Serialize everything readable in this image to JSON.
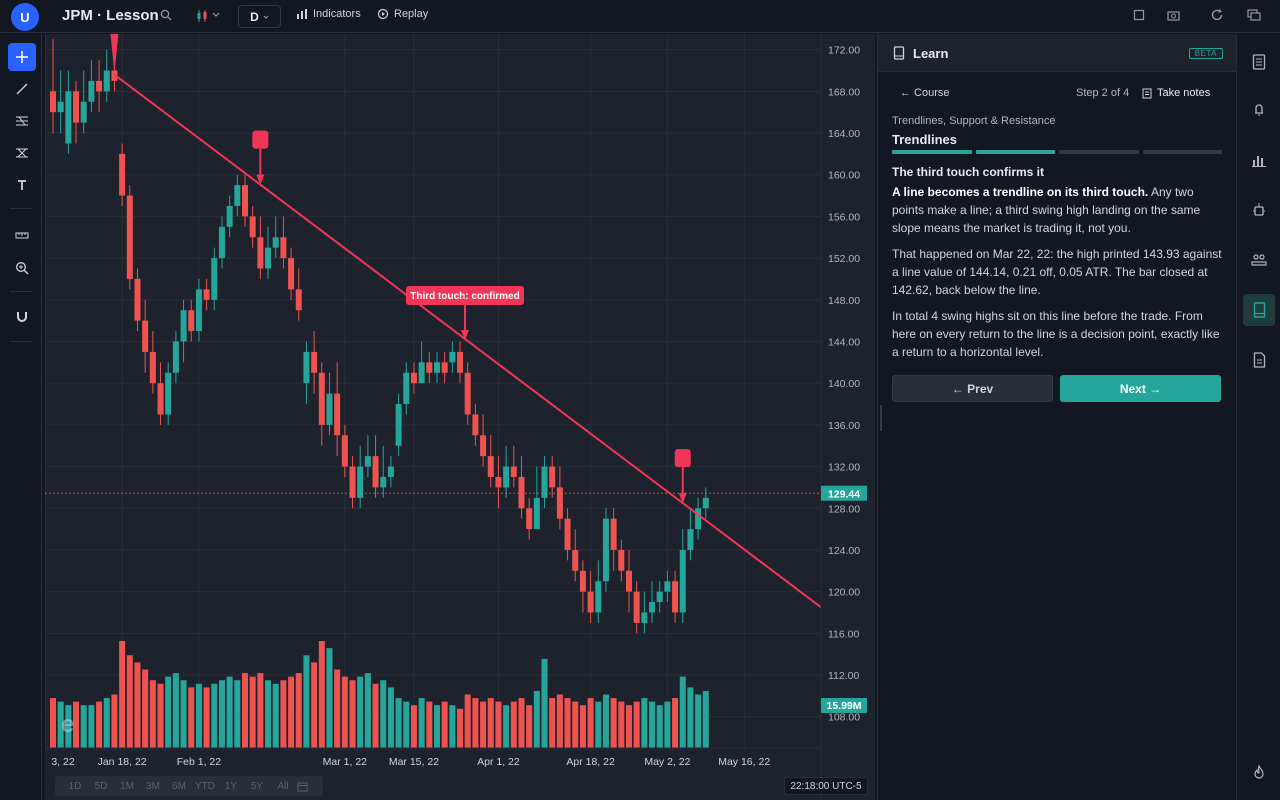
{
  "topbar": {
    "avatar_letter": "U",
    "symbol_title": "JPM · Lesson",
    "interval": "D",
    "indicators_label": "Indicators",
    "replay_label": "Replay"
  },
  "chart": {
    "price_ticks": [
      "172.00",
      "168.00",
      "164.00",
      "160.00",
      "156.00",
      "152.00",
      "148.00",
      "144.00",
      "140.00",
      "136.00",
      "132.00",
      "128.00",
      "124.00",
      "120.00",
      "116.00",
      "112.00",
      "108.00"
    ],
    "date_ticks": [
      "3, 22",
      "Jan 18, 22",
      "Feb 1, 22",
      "Mar 1, 22",
      "Mar 15, 22",
      "Apr 1, 22",
      "Apr 18, 22",
      "May 2, 22",
      "May 16, 22"
    ],
    "last_price": "129.44",
    "last_volume": "15.99M",
    "annotation": "Third touch: confirmed",
    "watermark": "e",
    "time_display": "22:18:00 UTC-5",
    "ranges": [
      "1D",
      "5D",
      "1M",
      "3M",
      "6M",
      "YTD",
      "1Y",
      "5Y",
      "All"
    ],
    "colors": {
      "up": "#26a69a",
      "down": "#ef5350",
      "trendline": "#f23658"
    }
  },
  "panel": {
    "title": "Learn",
    "badge": "BETA",
    "back_label": "← Course",
    "step": "Step 2 of 4",
    "notes_label": "Take notes",
    "subject": "Trendlines, Support & Resistance",
    "lesson": "Trendlines",
    "progress_done": 2,
    "progress_total": 4,
    "section_title": "The third touch confirms it",
    "p1_bold": "A line becomes a trendline on its third touch.",
    "p1_rest": " Any two points make a line; a third swing high landing on the same slope means the market is trading it, not you.",
    "p2": "That happened on Mar 22, 22: the high printed 143.93 against a line value of 144.14, 0.21 off, 0.05 ATR. The bar closed at 142.62, back below the line.",
    "p3": "In total 4 swing highs sit on this line before the trade. From here on every return to the line is a decision point, exactly like a return to a horizontal level.",
    "prev_label": "← Prev",
    "next_label": "Next →"
  },
  "chart_data": {
    "type": "candlestick",
    "ylim": [
      105,
      173.5
    ],
    "y_ticks": [
      172,
      168,
      164,
      160,
      156,
      152,
      148,
      144,
      140,
      136,
      132,
      128,
      124,
      120,
      116,
      112,
      108
    ],
    "last_price": 129.44,
    "candles": [
      [
        168,
        166,
        164,
        173
      ],
      [
        166,
        167,
        164,
        170
      ],
      [
        163,
        168,
        162,
        170
      ],
      [
        168,
        165,
        163,
        169
      ],
      [
        165,
        167,
        164,
        170
      ],
      [
        167,
        169,
        166,
        171
      ],
      [
        169,
        168,
        166,
        171
      ],
      [
        168,
        170,
        167,
        172
      ],
      [
        170,
        169,
        168,
        171
      ],
      [
        162,
        158,
        157,
        163
      ],
      [
        158,
        150,
        149,
        159
      ],
      [
        150,
        146,
        145,
        151
      ],
      [
        146,
        143,
        141,
        148
      ],
      [
        143,
        140,
        139,
        145
      ],
      [
        140,
        137,
        136,
        142
      ],
      [
        137,
        141,
        136,
        142
      ],
      [
        141,
        144,
        140,
        145
      ],
      [
        144,
        147,
        142,
        148
      ],
      [
        147,
        145,
        144,
        148
      ],
      [
        145,
        149,
        144,
        150
      ],
      [
        149,
        148,
        147,
        150
      ],
      [
        148,
        152,
        147,
        153
      ],
      [
        152,
        155,
        151,
        156
      ],
      [
        155,
        157,
        154,
        158
      ],
      [
        157,
        159,
        156,
        160
      ],
      [
        159,
        156,
        155,
        160
      ],
      [
        156,
        154,
        153,
        157
      ],
      [
        154,
        151,
        150,
        156
      ],
      [
        151,
        153,
        150,
        155
      ],
      [
        153,
        154,
        152,
        156
      ],
      [
        154,
        152,
        151,
        156
      ],
      [
        152,
        149,
        148,
        153
      ],
      [
        149,
        147,
        146,
        151
      ],
      [
        140,
        143,
        138,
        144
      ],
      [
        143,
        141,
        139,
        145
      ],
      [
        141,
        136,
        134,
        142
      ],
      [
        136,
        139,
        135,
        141
      ],
      [
        139,
        135,
        133,
        142
      ],
      [
        135,
        132,
        131,
        136
      ],
      [
        132,
        129,
        128,
        133
      ],
      [
        129,
        132,
        128,
        134
      ],
      [
        132,
        133,
        131,
        135
      ],
      [
        133,
        130,
        129,
        135
      ],
      [
        130,
        131,
        129,
        134
      ],
      [
        131,
        132,
        130,
        133
      ],
      [
        134,
        138,
        133,
        139
      ],
      [
        138,
        141,
        137,
        142
      ],
      [
        141,
        140,
        139,
        142
      ],
      [
        140,
        142,
        140,
        144
      ],
      [
        142,
        141,
        140,
        143
      ],
      [
        141,
        142,
        140,
        143
      ],
      [
        142,
        141,
        140,
        143
      ],
      [
        142,
        143,
        141,
        144
      ],
      [
        143,
        141,
        140,
        144
      ],
      [
        141,
        137,
        136,
        142
      ],
      [
        137,
        135,
        134,
        138
      ],
      [
        135,
        133,
        132,
        137
      ],
      [
        133,
        131,
        130,
        135
      ],
      [
        131,
        130,
        128,
        133
      ],
      [
        130,
        132,
        129,
        134
      ],
      [
        132,
        131,
        130,
        134
      ],
      [
        131,
        128,
        127,
        133
      ],
      [
        128,
        126,
        125,
        129
      ],
      [
        126,
        129,
        126,
        132
      ],
      [
        129,
        132,
        128,
        133
      ],
      [
        132,
        130,
        129,
        133
      ],
      [
        130,
        127,
        126,
        132
      ],
      [
        127,
        124,
        123,
        128
      ],
      [
        124,
        122,
        121,
        126
      ],
      [
        122,
        120,
        118,
        123
      ],
      [
        120,
        118,
        117,
        122
      ],
      [
        118,
        121,
        117,
        123
      ],
      [
        121,
        127,
        120,
        128
      ],
      [
        127,
        124,
        122,
        128
      ],
      [
        124,
        122,
        121,
        125
      ],
      [
        122,
        120,
        118,
        124
      ],
      [
        120,
        117,
        116,
        121
      ],
      [
        117,
        118,
        116,
        120
      ],
      [
        118,
        119,
        117,
        121
      ],
      [
        119,
        120,
        118,
        121
      ],
      [
        120,
        121,
        119,
        122
      ],
      [
        121,
        118,
        117,
        122
      ],
      [
        118,
        124,
        117,
        126
      ],
      [
        124,
        126,
        123,
        128
      ],
      [
        126,
        128,
        125,
        129
      ],
      [
        128,
        129,
        127,
        130
      ]
    ],
    "volumes": [
      14,
      13,
      12,
      13,
      12,
      12,
      13,
      14,
      15,
      30,
      26,
      24,
      22,
      19,
      18,
      20,
      21,
      19,
      17,
      18,
      17,
      18,
      19,
      20,
      19,
      21,
      20,
      21,
      19,
      18,
      19,
      20,
      21,
      26,
      24,
      30,
      28,
      22,
      20,
      19,
      20,
      21,
      18,
      19,
      17,
      14,
      13,
      12,
      14,
      13,
      12,
      13,
      12,
      11,
      15,
      14,
      13,
      14,
      13,
      12,
      13,
      14,
      12,
      16,
      25,
      14,
      15,
      14,
      13,
      12,
      14,
      13,
      15,
      14,
      13,
      12,
      13,
      14,
      13,
      12,
      13,
      14,
      20,
      17,
      15,
      16
    ],
    "trendline": [
      [
        172.6,
        0
      ],
      [
        118.5,
        1
      ]
    ],
    "touches": [
      "Jan 12, 22",
      "Feb 3, 22",
      "Mar 22, 22",
      "May 4, 22"
    ]
  }
}
